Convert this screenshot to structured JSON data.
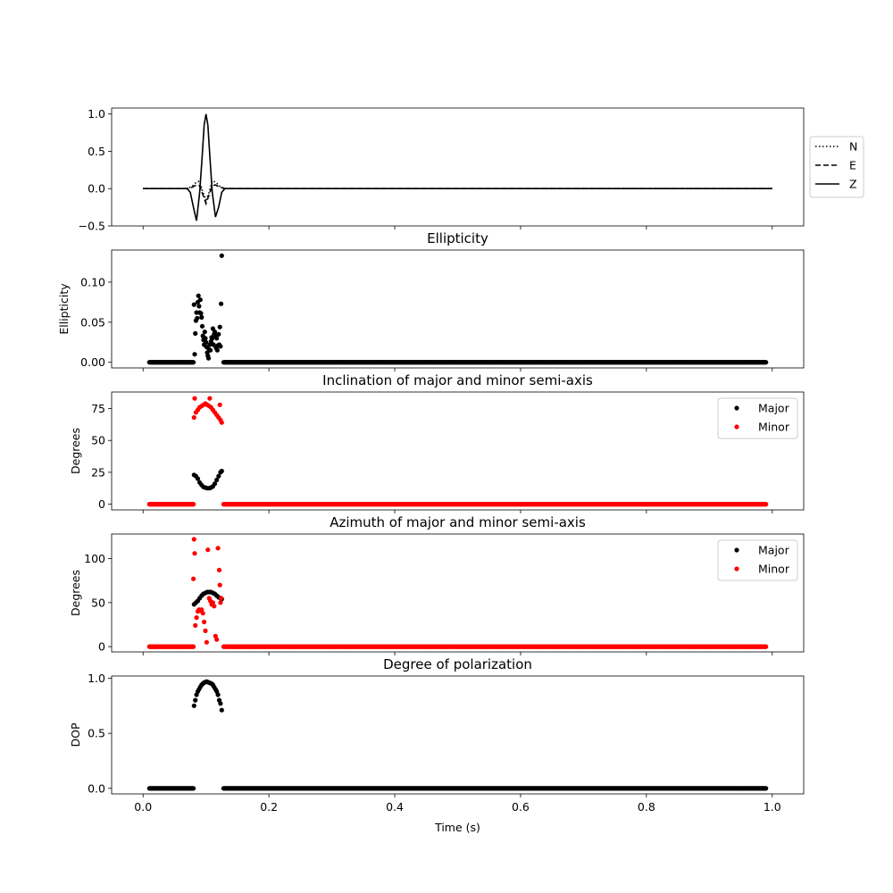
{
  "chart_data": [
    {
      "type": "line",
      "title": "",
      "xlabel": "",
      "ylabel": "",
      "xlim": [
        -0.05,
        1.05
      ],
      "ylim": [
        -0.5,
        1.08
      ],
      "xticks": [
        0.0,
        0.2,
        0.4,
        0.6,
        0.8,
        1.0
      ],
      "yticks": [
        -0.5,
        0.0,
        0.5,
        1.0
      ],
      "ytick_labels": [
        "−0.5",
        "0.0",
        "0.5",
        "1.0"
      ],
      "show_xtick_labels": false,
      "legend_position": "outside-right",
      "series": [
        {
          "name": "N",
          "style": "dotted",
          "color": "#000000",
          "x": [
            0.0,
            0.07,
            0.078,
            0.085,
            0.09,
            0.095,
            0.1,
            0.105,
            0.11,
            0.115,
            0.122,
            0.13,
            1.0
          ],
          "y": [
            0.0,
            0.0,
            0.03,
            0.09,
            0.1,
            -0.05,
            -0.15,
            -0.05,
            0.1,
            0.09,
            0.03,
            0.0,
            0.0
          ]
        },
        {
          "name": "E",
          "style": "dashed",
          "color": "#000000",
          "x": [
            0.0,
            0.07,
            0.078,
            0.085,
            0.09,
            0.095,
            0.1,
            0.105,
            0.11,
            0.115,
            0.122,
            0.13,
            1.0
          ],
          "y": [
            0.0,
            0.0,
            0.02,
            0.05,
            0.04,
            -0.08,
            -0.2,
            -0.08,
            0.04,
            0.05,
            0.02,
            0.0,
            0.0
          ]
        },
        {
          "name": "Z",
          "style": "solid",
          "color": "#000000",
          "x": [
            0.0,
            0.07,
            0.075,
            0.08,
            0.085,
            0.09,
            0.094,
            0.097,
            0.1,
            0.103,
            0.106,
            0.11,
            0.115,
            0.12,
            0.125,
            0.13,
            1.0
          ],
          "y": [
            0.0,
            0.0,
            -0.05,
            -0.25,
            -0.43,
            -0.05,
            0.45,
            0.85,
            1.0,
            0.85,
            0.45,
            -0.05,
            -0.38,
            -0.25,
            -0.05,
            0.0,
            0.0
          ]
        }
      ]
    },
    {
      "type": "scatter",
      "title": "Ellipticity",
      "xlabel": "",
      "ylabel": "Ellipticity",
      "xlim": [
        -0.05,
        1.05
      ],
      "ylim": [
        -0.007,
        0.14
      ],
      "xticks": [
        0.0,
        0.2,
        0.4,
        0.6,
        0.8,
        1.0
      ],
      "yticks": [
        0.0,
        0.05,
        0.1
      ],
      "ytick_labels": [
        "0.00",
        "0.05",
        "0.10"
      ],
      "show_xtick_labels": false,
      "baseline_ranges": [
        [
          0.01,
          0.08
        ],
        [
          0.128,
          0.99
        ]
      ],
      "series": [
        {
          "name": "Ellipticity",
          "color": "#000000",
          "x": [
            0.081,
            0.082,
            0.083,
            0.084,
            0.085,
            0.086,
            0.087,
            0.088,
            0.089,
            0.09,
            0.091,
            0.092,
            0.093,
            0.094,
            0.095,
            0.096,
            0.097,
            0.098,
            0.099,
            0.1,
            0.101,
            0.102,
            0.103,
            0.104,
            0.105,
            0.106,
            0.107,
            0.108,
            0.109,
            0.11,
            0.111,
            0.112,
            0.113,
            0.114,
            0.115,
            0.116,
            0.117,
            0.118,
            0.119,
            0.12,
            0.121,
            0.122,
            0.123,
            0.124,
            0.125
          ],
          "y": [
            0.072,
            0.01,
            0.036,
            0.052,
            0.062,
            0.055,
            0.075,
            0.083,
            0.07,
            0.062,
            0.078,
            0.061,
            0.056,
            0.045,
            0.033,
            0.028,
            0.022,
            0.038,
            0.03,
            0.025,
            0.019,
            0.012,
            0.008,
            0.005,
            0.016,
            0.022,
            0.015,
            0.026,
            0.031,
            0.03,
            0.042,
            0.022,
            0.035,
            0.038,
            0.032,
            0.018,
            0.03,
            0.015,
            0.021,
            0.035,
            0.022,
            0.044,
            0.02,
            0.073,
            0.133
          ]
        }
      ]
    },
    {
      "type": "scatter",
      "title": "Inclination of major and minor semi-axis",
      "xlabel": "",
      "ylabel": "Degrees",
      "xlim": [
        -0.05,
        1.05
      ],
      "ylim": [
        -4.5,
        88
      ],
      "xticks": [
        0.0,
        0.2,
        0.4,
        0.6,
        0.8,
        1.0
      ],
      "yticks": [
        0,
        25,
        50,
        75
      ],
      "ytick_labels": [
        "0",
        "25",
        "50",
        "75"
      ],
      "show_xtick_labels": false,
      "legend_position": "top-right",
      "baseline_ranges": [
        [
          0.01,
          0.08
        ],
        [
          0.128,
          0.99
        ]
      ],
      "series": [
        {
          "name": "Major",
          "color": "#000000",
          "x": [
            0.081,
            0.084,
            0.087,
            0.09,
            0.093,
            0.096,
            0.099,
            0.102,
            0.105,
            0.108,
            0.111,
            0.114,
            0.117,
            0.12,
            0.123,
            0.125
          ],
          "y": [
            23,
            22,
            20,
            17,
            15,
            13.5,
            13,
            12.5,
            12.5,
            13,
            14,
            16,
            19,
            22,
            25,
            26
          ]
        },
        {
          "name": "Minor",
          "color": "#ff0000",
          "x": [
            0.081,
            0.082,
            0.084,
            0.087,
            0.09,
            0.093,
            0.096,
            0.099,
            0.102,
            0.105,
            0.106,
            0.108,
            0.111,
            0.114,
            0.117,
            0.12,
            0.122,
            0.123,
            0.125
          ],
          "y": [
            68,
            83,
            72,
            74,
            76,
            77,
            78,
            79,
            78,
            77,
            83,
            76,
            74,
            72,
            70,
            68,
            78,
            66,
            64
          ]
        }
      ]
    },
    {
      "type": "scatter",
      "title": "Azimuth of major and minor semi-axis",
      "xlabel": "",
      "ylabel": "Degrees",
      "xlim": [
        -0.05,
        1.05
      ],
      "ylim": [
        -6,
        128
      ],
      "xticks": [
        0.0,
        0.2,
        0.4,
        0.6,
        0.8,
        1.0
      ],
      "yticks": [
        0,
        50,
        100
      ],
      "ytick_labels": [
        "0",
        "50",
        "100"
      ],
      "show_xtick_labels": false,
      "legend_position": "top-right",
      "baseline_ranges": [
        [
          0.01,
          0.08
        ],
        [
          0.128,
          0.99
        ]
      ],
      "series": [
        {
          "name": "Major",
          "color": "#000000",
          "x": [
            0.081,
            0.084,
            0.087,
            0.09,
            0.093,
            0.096,
            0.099,
            0.102,
            0.105,
            0.108,
            0.111,
            0.114,
            0.117,
            0.12,
            0.123,
            0.125
          ],
          "y": [
            48,
            50,
            52,
            55,
            58,
            60,
            61,
            62,
            62,
            62,
            61,
            60,
            58,
            56,
            55,
            54
          ]
        },
        {
          "name": "Minor",
          "color": "#ff0000",
          "x": [
            0.08,
            0.081,
            0.082,
            0.083,
            0.085,
            0.087,
            0.089,
            0.091,
            0.093,
            0.095,
            0.097,
            0.099,
            0.101,
            0.103,
            0.105,
            0.107,
            0.109,
            0.111,
            0.113,
            0.115,
            0.117,
            0.119,
            0.121,
            0.122,
            0.123,
            0.124
          ],
          "y": [
            77,
            122,
            106,
            24,
            33,
            40,
            42,
            41,
            42,
            38,
            28,
            18,
            5,
            110,
            55,
            52,
            48,
            50,
            46,
            12,
            8,
            112,
            87,
            70,
            50,
            55
          ]
        }
      ]
    },
    {
      "type": "scatter",
      "title": "Degree of polarization",
      "xlabel": "Time (s)",
      "ylabel": "DOP",
      "xlim": [
        -0.05,
        1.05
      ],
      "ylim": [
        -0.05,
        1.02
      ],
      "xticks": [
        0.0,
        0.2,
        0.4,
        0.6,
        0.8,
        1.0
      ],
      "xtick_labels": [
        "0.0",
        "0.2",
        "0.4",
        "0.6",
        "0.8",
        "1.0"
      ],
      "yticks": [
        0.0,
        0.5,
        1.0
      ],
      "ytick_labels": [
        "0.0",
        "0.5",
        "1.0"
      ],
      "show_xtick_labels": true,
      "baseline_ranges": [
        [
          0.01,
          0.08
        ],
        [
          0.128,
          0.99
        ]
      ],
      "series": [
        {
          "name": "DOP",
          "color": "#000000",
          "x": [
            0.081,
            0.083,
            0.085,
            0.087,
            0.089,
            0.091,
            0.093,
            0.095,
            0.097,
            0.099,
            0.101,
            0.103,
            0.105,
            0.107,
            0.109,
            0.111,
            0.113,
            0.115,
            0.117,
            0.119,
            0.121,
            0.123,
            0.125
          ],
          "y": [
            0.75,
            0.8,
            0.85,
            0.88,
            0.9,
            0.92,
            0.94,
            0.95,
            0.96,
            0.965,
            0.97,
            0.965,
            0.96,
            0.955,
            0.95,
            0.94,
            0.92,
            0.9,
            0.88,
            0.85,
            0.8,
            0.77,
            0.71
          ]
        }
      ]
    }
  ]
}
